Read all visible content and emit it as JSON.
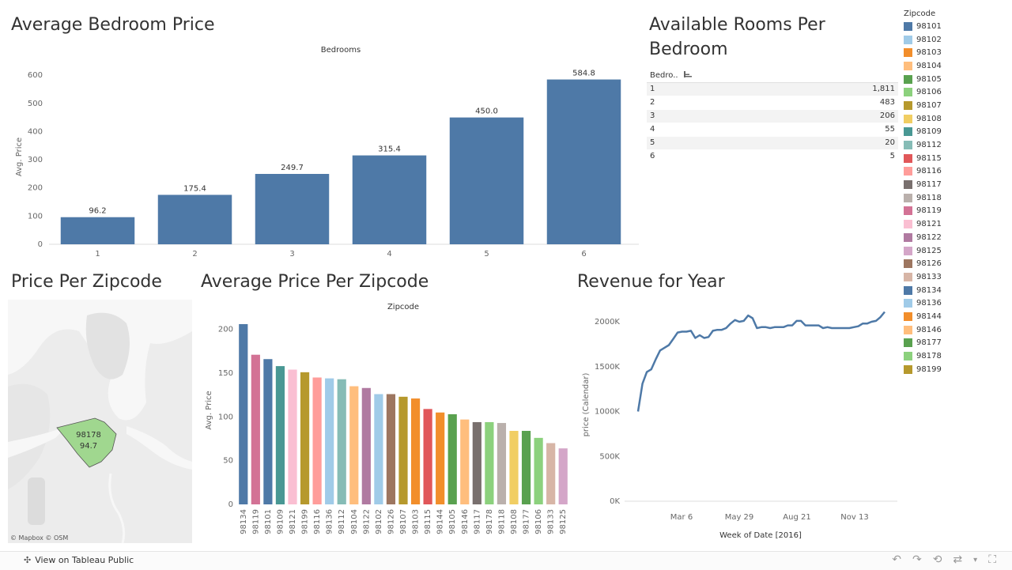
{
  "bedroom_chart": {
    "title": "Average Bedroom Price",
    "header": "Bedrooms",
    "ylabel": "Avg. Price"
  },
  "rooms_table": {
    "title_line1": "Available Rooms Per",
    "title_line2": "Bedroom",
    "header": "Bedro..",
    "rows": [
      {
        "bedroom": "1",
        "count": "1,811"
      },
      {
        "bedroom": "2",
        "count": "483"
      },
      {
        "bedroom": "3",
        "count": "206"
      },
      {
        "bedroom": "4",
        "count": "55"
      },
      {
        "bedroom": "5",
        "count": "20"
      },
      {
        "bedroom": "6",
        "count": "5"
      }
    ]
  },
  "map": {
    "title": "Price Per Zipcode",
    "region_zip": "98178",
    "region_value": "94.7",
    "attribution": "© Mapbox  © OSM",
    "region_color": "#a0d78f"
  },
  "zip_chart": {
    "title": "Average Price Per Zipcode",
    "header": "Zipcode",
    "ylabel": "Avg. Price"
  },
  "revenue_chart": {
    "title": "Revenue for Year",
    "ylabel": "price (Calendar)",
    "xlabel": "Week of Date [2016]"
  },
  "legend": {
    "title": "Zipcode",
    "items": [
      {
        "zip": "98101",
        "color": "#4e79a7"
      },
      {
        "zip": "98102",
        "color": "#a0cbe8"
      },
      {
        "zip": "98103",
        "color": "#f28e2b"
      },
      {
        "zip": "98104",
        "color": "#ffbe7d"
      },
      {
        "zip": "98105",
        "color": "#59a14f"
      },
      {
        "zip": "98106",
        "color": "#8cd17d"
      },
      {
        "zip": "98107",
        "color": "#b6992d"
      },
      {
        "zip": "98108",
        "color": "#f1ce63"
      },
      {
        "zip": "98109",
        "color": "#499894"
      },
      {
        "zip": "98112",
        "color": "#86bcb6"
      },
      {
        "zip": "98115",
        "color": "#e15759"
      },
      {
        "zip": "98116",
        "color": "#ff9d9a"
      },
      {
        "zip": "98117",
        "color": "#79706e"
      },
      {
        "zip": "98118",
        "color": "#bab0ac"
      },
      {
        "zip": "98119",
        "color": "#d37295"
      },
      {
        "zip": "98121",
        "color": "#fabfd2"
      },
      {
        "zip": "98122",
        "color": "#b07aa1"
      },
      {
        "zip": "98125",
        "color": "#d4a6c8"
      },
      {
        "zip": "98126",
        "color": "#9d7660"
      },
      {
        "zip": "98133",
        "color": "#d7b5a6"
      },
      {
        "zip": "98134",
        "color": "#4e79a7"
      },
      {
        "zip": "98136",
        "color": "#a0cbe8"
      },
      {
        "zip": "98144",
        "color": "#f28e2b"
      },
      {
        "zip": "98146",
        "color": "#ffbe7d"
      },
      {
        "zip": "98177",
        "color": "#59a14f"
      },
      {
        "zip": "98178",
        "color": "#8cd17d"
      },
      {
        "zip": "98199",
        "color": "#b6992d"
      }
    ]
  },
  "footer": {
    "link": "View on Tableau Public"
  },
  "chart_data": [
    {
      "type": "bar",
      "categories": [
        "1",
        "2",
        "3",
        "4",
        "5",
        "6"
      ],
      "values": [
        96.2,
        175.4,
        249.7,
        315.4,
        450.0,
        584.8
      ],
      "labels": [
        "96.2",
        "175.4",
        "249.7",
        "315.4",
        "450.0",
        "584.8"
      ],
      "title": "Average Bedroom Price",
      "xlabel": "Bedrooms",
      "ylabel": "Avg. Price",
      "ylim": [
        0,
        620
      ],
      "yticks": [
        0,
        100,
        200,
        300,
        400,
        500,
        600
      ],
      "color": "#4e79a7",
      "grid": false
    },
    {
      "type": "bar",
      "categories": [
        "98134",
        "98119",
        "98101",
        "98109",
        "98121",
        "98199",
        "98116",
        "98136",
        "98112",
        "98104",
        "98122",
        "98102",
        "98126",
        "98107",
        "98103",
        "98115",
        "98144",
        "98105",
        "98146",
        "98117",
        "98178",
        "98118",
        "98108",
        "98177",
        "98106",
        "98133",
        "98125"
      ],
      "values": [
        206,
        171,
        166,
        158,
        154,
        151,
        145,
        144,
        143,
        135,
        133,
        126,
        126,
        123,
        121,
        109,
        105,
        103,
        97,
        94,
        94,
        93,
        84,
        84,
        76,
        70,
        64
      ],
      "colors": [
        "#4e79a7",
        "#d37295",
        "#4e79a7",
        "#499894",
        "#fabfd2",
        "#b6992d",
        "#ff9d9a",
        "#a0cbe8",
        "#86bcb6",
        "#ffbe7d",
        "#b07aa1",
        "#a0cbe8",
        "#9d7660",
        "#b6992d",
        "#f28e2b",
        "#e15759",
        "#f28e2b",
        "#59a14f",
        "#ffbe7d",
        "#79706e",
        "#8cd17d",
        "#bab0ac",
        "#f1ce63",
        "#59a14f",
        "#8cd17d",
        "#d7b5a6",
        "#d4a6c8"
      ],
      "title": "Average Price Per Zipcode",
      "xlabel": "Zipcode",
      "ylabel": "Avg. Price",
      "ylim": [
        0,
        215
      ],
      "yticks": [
        0,
        50,
        100,
        150,
        200
      ],
      "grid": false
    },
    {
      "type": "line",
      "title": "Revenue for Year",
      "xlabel": "Week of Date [2016]",
      "ylabel": "price (Calendar)",
      "x_ticks": [
        "Mar 6",
        "May 29",
        "Aug 21",
        "Nov 13"
      ],
      "ylim": [
        0,
        2150000
      ],
      "yticks": [
        0,
        500000,
        1000000,
        1500000,
        2000000
      ],
      "ytick_labels": [
        "0K",
        "500K",
        "1000K",
        "1500K",
        "2000K"
      ],
      "color": "#4e79a7",
      "series": [
        {
          "values": [
            1000000,
            1310000,
            1440000,
            1470000,
            1580000,
            1680000,
            1710000,
            1740000,
            1810000,
            1880000,
            1890000,
            1890000,
            1900000,
            1820000,
            1850000,
            1820000,
            1830000,
            1900000,
            1910000,
            1910000,
            1930000,
            1980000,
            2020000,
            2000000,
            2010000,
            2070000,
            2040000,
            1930000,
            1940000,
            1940000,
            1930000,
            1940000,
            1940000,
            1940000,
            1960000,
            1960000,
            2010000,
            2010000,
            1960000,
            1960000,
            1960000,
            1960000,
            1930000,
            1940000,
            1930000,
            1930000,
            1930000,
            1930000,
            1930000,
            1940000,
            1950000,
            1980000,
            1980000,
            2000000,
            2010000,
            2050000,
            2110000
          ]
        }
      ],
      "grid": false
    }
  ]
}
